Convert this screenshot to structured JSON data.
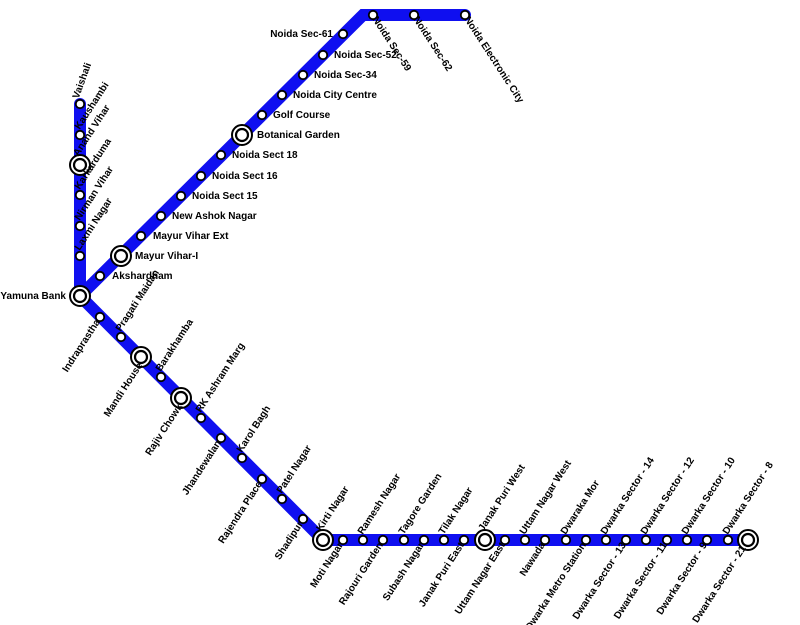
{
  "line_color": "#0f0ff0",
  "station_icon": "small-station-circle",
  "interchange_icon": "interchange-station-ring",
  "stations": [
    {
      "name": "Vaishali",
      "type": "regular"
    },
    {
      "name": "Kaushambi",
      "type": "regular"
    },
    {
      "name": "Anand Vihar",
      "type": "interchange"
    },
    {
      "name": "Karkarduma",
      "type": "regular"
    },
    {
      "name": "Nirman Vihar",
      "type": "regular"
    },
    {
      "name": "Laxmi Nagar",
      "type": "regular"
    },
    {
      "name": "Yamuna Bank",
      "type": "interchange"
    },
    {
      "name": "Akshardham",
      "type": "regular"
    },
    {
      "name": "Mayur Vihar-I",
      "type": "interchange"
    },
    {
      "name": "Mayur Vihar Ext",
      "type": "regular"
    },
    {
      "name": "New Ashok Nagar",
      "type": "regular"
    },
    {
      "name": "Noida Sect 15",
      "type": "regular"
    },
    {
      "name": "Noida Sect 16",
      "type": "regular"
    },
    {
      "name": "Noida Sect 18",
      "type": "regular"
    },
    {
      "name": "Botanical Garden",
      "type": "interchange"
    },
    {
      "name": "Golf Course",
      "type": "regular"
    },
    {
      "name": "Noida City Centre",
      "type": "regular"
    },
    {
      "name": "Noida Sec-34",
      "type": "regular"
    },
    {
      "name": "Noida Sec-52",
      "type": "regular"
    },
    {
      "name": "Noida Sec-61",
      "type": "regular"
    },
    {
      "name": "Noida Sec-59",
      "type": "regular"
    },
    {
      "name": "Noida Sec-62",
      "type": "regular"
    },
    {
      "name": "Noida Electronic City",
      "type": "regular"
    },
    {
      "name": "Indraprastha",
      "type": "regular"
    },
    {
      "name": "Pragati Maidan",
      "type": "regular"
    },
    {
      "name": "Mandi House",
      "type": "interchange"
    },
    {
      "name": "Barakhamba",
      "type": "regular"
    },
    {
      "name": "Rajiv Chowk",
      "type": "interchange"
    },
    {
      "name": "RK Ashram Marg",
      "type": "regular"
    },
    {
      "name": "Jhandewalan",
      "type": "regular"
    },
    {
      "name": "Karol Bagh",
      "type": "regular"
    },
    {
      "name": "Rajendra Place",
      "type": "regular"
    },
    {
      "name": "Patel Nagar",
      "type": "regular"
    },
    {
      "name": "Shadipur",
      "type": "regular"
    },
    {
      "name": "Kirti Nagar",
      "type": "interchange"
    },
    {
      "name": "Moti Nagar",
      "type": "regular"
    },
    {
      "name": "Ramesh Nagar",
      "type": "regular"
    },
    {
      "name": "Rajouri Garden",
      "type": "regular"
    },
    {
      "name": "Tagore Garden",
      "type": "regular"
    },
    {
      "name": "Subash Nagar",
      "type": "regular"
    },
    {
      "name": "Tilak Nagar",
      "type": "regular"
    },
    {
      "name": "Janak Puri East",
      "type": "regular"
    },
    {
      "name": "Janak Puri West",
      "type": "interchange"
    },
    {
      "name": "Uttam Nagar East",
      "type": "regular"
    },
    {
      "name": "Uttam Nagar West",
      "type": "regular"
    },
    {
      "name": "Nawada",
      "type": "regular"
    },
    {
      "name": "Dwaraka Mor",
      "type": "regular"
    },
    {
      "name": "Dwarka Metro Station",
      "type": "regular"
    },
    {
      "name": "Dwarka Sector - 14",
      "type": "regular"
    },
    {
      "name": "Dwarka Sector - 13",
      "type": "regular"
    },
    {
      "name": "Dwarka Sector - 12",
      "type": "regular"
    },
    {
      "name": "Dwarka Sector - 11",
      "type": "regular"
    },
    {
      "name": "Dwarka Sector - 10",
      "type": "regular"
    },
    {
      "name": "Dwarka Sector - 9",
      "type": "regular"
    },
    {
      "name": "Dwarka Sector - 8",
      "type": "regular"
    },
    {
      "name": "Dwarka Sector - 21",
      "type": "interchange"
    }
  ]
}
